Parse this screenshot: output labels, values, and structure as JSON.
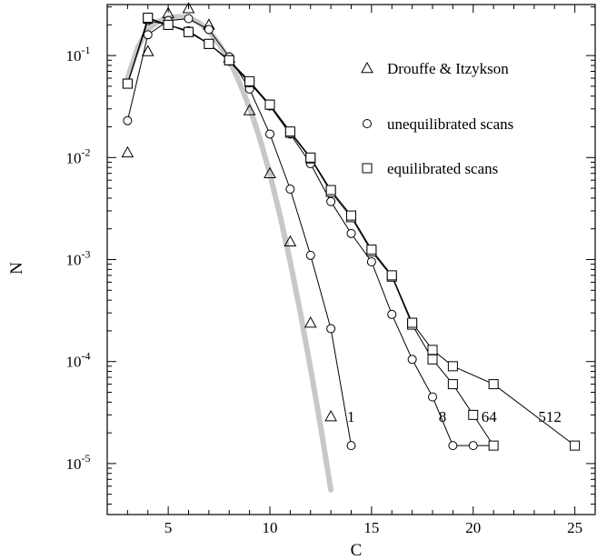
{
  "chart_data": {
    "type": "scatter",
    "xlabel": "C",
    "ylabel": "N",
    "xlim": [
      2,
      26
    ],
    "ylim_log10": [
      -5.5,
      -0.5
    ],
    "yscale": "log",
    "grid": false,
    "legend_position": "top-right",
    "x_ticks": [
      5,
      10,
      15,
      20,
      25
    ],
    "x_tick_labels": [
      "5",
      "10",
      "15",
      "20",
      "25"
    ],
    "y_ticks": [
      -1,
      -2,
      -3,
      -4,
      -5
    ],
    "y_tick_bases": [
      "10",
      "10",
      "10",
      "10",
      "10"
    ],
    "y_tick_exponents": [
      "-1",
      "-2",
      "-3",
      "-4",
      "-5"
    ],
    "legend": [
      {
        "label": "Drouffe & Itzykson",
        "marker": "triangle"
      },
      {
        "label": "unequilibrated scans",
        "marker": "circle"
      },
      {
        "label": "equilibrated scans",
        "marker": "square"
      }
    ],
    "series": [
      {
        "marker": "triangle",
        "connected": false,
        "x": [
          3,
          4,
          5,
          6,
          7,
          8,
          9,
          10,
          11,
          12,
          13
        ],
        "y": [
          0.0112,
          0.11,
          0.26,
          0.29,
          0.2,
          0.095,
          0.029,
          0.007,
          0.0015,
          0.00024,
          2.9e-05
        ]
      },
      {
        "marker": "circle",
        "connected": true,
        "label": "1",
        "x": [
          3,
          4,
          5,
          6,
          7,
          8,
          9,
          10,
          11,
          12,
          13,
          14
        ],
        "y": [
          0.023,
          0.16,
          0.22,
          0.23,
          0.18,
          0.097,
          0.047,
          0.017,
          0.0049,
          0.0011,
          0.00021,
          1.5e-05
        ]
      },
      {
        "marker": "circle",
        "connected": true,
        "label": "8",
        "x": [
          3,
          4,
          5,
          6,
          7,
          8,
          9,
          10,
          11,
          12,
          13,
          14,
          15,
          16,
          17,
          18,
          19,
          20,
          21
        ],
        "y": [
          0.053,
          0.22,
          0.2,
          0.175,
          0.13,
          0.088,
          0.054,
          0.032,
          0.017,
          0.0087,
          0.0037,
          0.0018,
          0.00095,
          0.00029,
          0.000105,
          4.5e-05,
          1.5e-05,
          1.5e-05,
          1.5e-05
        ]
      },
      {
        "marker": "square",
        "connected": true,
        "label": "64",
        "x": [
          3,
          4,
          5,
          6,
          7,
          8,
          9,
          10,
          11,
          12,
          13,
          14,
          15,
          16,
          17,
          18,
          19,
          20,
          21
        ],
        "y": [
          0.053,
          0.23,
          0.2,
          0.17,
          0.13,
          0.09,
          0.055,
          0.033,
          0.0175,
          0.0098,
          0.0046,
          0.0026,
          0.0012,
          0.00068,
          0.00023,
          0.000105,
          6e-05,
          3e-05,
          1.5e-05
        ]
      },
      {
        "marker": "square",
        "connected": true,
        "label": "512",
        "x": [
          3,
          4,
          5,
          6,
          7,
          8,
          9,
          10,
          11,
          12,
          13,
          14,
          15,
          16,
          17,
          18,
          19,
          21,
          25
        ],
        "y": [
          0.053,
          0.235,
          0.2,
          0.17,
          0.13,
          0.09,
          0.056,
          0.033,
          0.018,
          0.01,
          0.0048,
          0.0027,
          0.00125,
          0.0007,
          0.00024,
          0.00013,
          9e-05,
          6e-05,
          1.5e-05
        ]
      }
    ],
    "fit_curve": {
      "color": "#c8c8c8",
      "x": [
        3,
        3.5,
        4,
        4.5,
        5,
        5.5,
        6,
        6.5,
        7,
        7.5,
        8,
        8.5,
        9,
        9.5,
        10,
        10.5,
        11,
        11.5,
        12,
        12.5,
        13,
        13.5,
        14
      ],
      "y": [
        0.06,
        0.12,
        0.18,
        0.215,
        0.235,
        0.24,
        0.235,
        0.21,
        0.175,
        0.13,
        0.09,
        0.055,
        0.031,
        0.0155,
        0.0069,
        0.0027,
        0.00095,
        0.0003,
        8.5e-05,
        2.3e-05,
        5.5e-06,
        1.2e-06,
        5e-07
      ]
    },
    "annotations": [
      {
        "text": "1",
        "x": 13.8,
        "y": 2.9e-05
      },
      {
        "text": "8",
        "x": 18.3,
        "y": 2.9e-05
      },
      {
        "text": "64",
        "x": 20.4,
        "y": 2.9e-05
      },
      {
        "text": "512",
        "x": 23.2,
        "y": 2.9e-05
      }
    ]
  }
}
